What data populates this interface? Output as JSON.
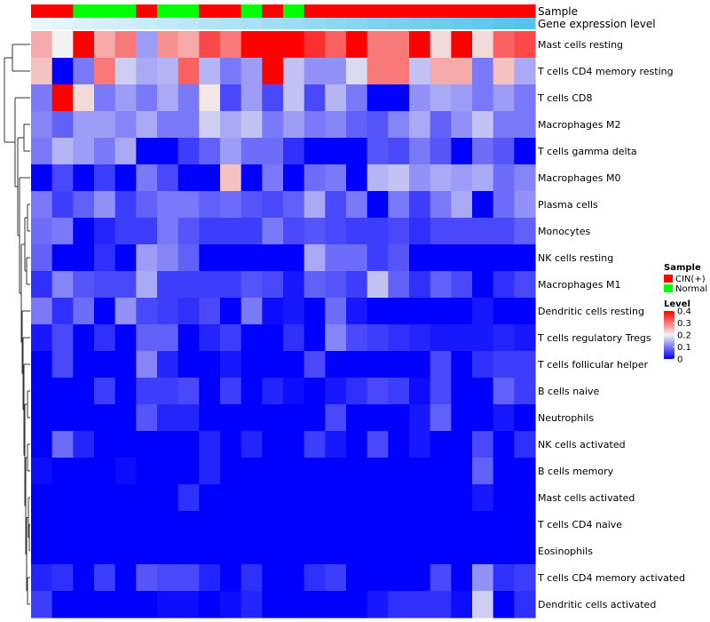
{
  "chart_data": {
    "type": "heatmap",
    "title": "",
    "annotation_tracks": [
      {
        "name": "Sample",
        "values": [
          "CIN(+)",
          "CIN(+)",
          "Normal",
          "Normal",
          "Normal",
          "CIN(+)",
          "Normal",
          "Normal",
          "CIN(+)",
          "CIN(+)",
          "Normal",
          "CIN(+)",
          "Normal",
          "CIN(+)",
          "CIN(+)",
          "CIN(+)",
          "CIN(+)",
          "CIN(+)",
          "CIN(+)",
          "CIN(+)",
          "CIN(+)",
          "CIN(+)",
          "CIN(+)",
          "CIN(+)"
        ]
      },
      {
        "name": "Gene expression level",
        "values": [
          0.0,
          0.04,
          0.09,
          0.13,
          0.17,
          0.22,
          0.26,
          0.3,
          0.35,
          0.39,
          0.43,
          0.48,
          0.52,
          0.57,
          0.61,
          0.65,
          0.7,
          0.74,
          0.78,
          0.83,
          0.87,
          0.91,
          0.96,
          1.0
        ]
      }
    ],
    "rows": [
      "Mast cells resting",
      "T cells CD4 memory resting",
      "T cells CD8",
      "Macrophages M2",
      "T cells gamma delta",
      "Macrophages M0",
      "Plasma cells",
      "Monocytes",
      "NK cells resting",
      "Macrophages M1",
      "Dendritic cells resting",
      "T cells regulatory  Tregs",
      "T cells follicular helper",
      "B cells naive",
      "Neutrophils",
      "NK cells activated",
      "B cells memory",
      "Mast cells activated",
      "T cells CD4 naive",
      "Eosinophils",
      "T cells CD4 memory activated",
      "Dendritic cells activated"
    ],
    "values": [
      [
        0.26,
        0.2,
        0.4,
        0.26,
        0.3,
        0.13,
        0.28,
        0.26,
        0.34,
        0.3,
        0.4,
        0.4,
        0.4,
        0.36,
        0.32,
        0.4,
        0.3,
        0.3,
        0.4,
        0.22,
        0.4,
        0.22,
        0.32,
        0.34
      ],
      [
        0.24,
        0.0,
        0.1,
        0.3,
        0.17,
        0.14,
        0.15,
        0.32,
        0.15,
        0.1,
        0.13,
        0.4,
        0.16,
        0.12,
        0.12,
        0.18,
        0.3,
        0.3,
        0.16,
        0.26,
        0.26,
        0.1,
        0.24,
        0.14
      ],
      [
        0.1,
        0.4,
        0.22,
        0.1,
        0.13,
        0.1,
        0.14,
        0.1,
        0.21,
        0.06,
        0.13,
        0.06,
        0.16,
        0.06,
        0.15,
        0.1,
        0.0,
        0.0,
        0.12,
        0.14,
        0.13,
        0.1,
        0.13,
        0.1
      ],
      [
        0.11,
        0.08,
        0.13,
        0.13,
        0.11,
        0.14,
        0.1,
        0.1,
        0.17,
        0.14,
        0.16,
        0.1,
        0.13,
        0.1,
        0.11,
        0.08,
        0.07,
        0.11,
        0.14,
        0.08,
        0.12,
        0.16,
        0.1,
        0.1
      ],
      [
        0.1,
        0.15,
        0.13,
        0.1,
        0.14,
        0.0,
        0.0,
        0.05,
        0.08,
        0.13,
        0.09,
        0.09,
        0.04,
        0.0,
        0.0,
        0.0,
        0.07,
        0.06,
        0.1,
        0.07,
        0.0,
        0.09,
        0.07,
        0.0
      ],
      [
        0.0,
        0.06,
        0.0,
        0.05,
        0.0,
        0.1,
        0.06,
        0.0,
        0.0,
        0.24,
        0.0,
        0.1,
        0.0,
        0.09,
        0.1,
        0.0,
        0.15,
        0.16,
        0.12,
        0.14,
        0.13,
        0.14,
        0.09,
        0.11
      ],
      [
        0.1,
        0.05,
        0.08,
        0.12,
        0.05,
        0.08,
        0.1,
        0.1,
        0.08,
        0.09,
        0.07,
        0.06,
        0.08,
        0.14,
        0.06,
        0.1,
        0.0,
        0.1,
        0.05,
        0.1,
        0.14,
        0.0,
        0.09,
        0.12
      ],
      [
        0.09,
        0.1,
        0.0,
        0.03,
        0.05,
        0.05,
        0.1,
        0.07,
        0.05,
        0.05,
        0.05,
        0.1,
        0.06,
        0.07,
        0.06,
        0.05,
        0.05,
        0.06,
        0.04,
        0.06,
        0.06,
        0.06,
        0.06,
        0.08
      ],
      [
        0.08,
        0.0,
        0.0,
        0.04,
        0.0,
        0.13,
        0.11,
        0.08,
        0.0,
        0.0,
        0.0,
        0.0,
        0.0,
        0.14,
        0.09,
        0.09,
        0.05,
        0.07,
        0.0,
        0.0,
        0.0,
        0.0,
        0.0,
        0.0
      ],
      [
        0.04,
        0.11,
        0.07,
        0.06,
        0.06,
        0.14,
        0.05,
        0.05,
        0.05,
        0.05,
        0.07,
        0.06,
        0.02,
        0.08,
        0.07,
        0.05,
        0.16,
        0.08,
        0.04,
        0.08,
        0.06,
        0.0,
        0.04,
        0.06
      ],
      [
        0.1,
        0.04,
        0.09,
        0.0,
        0.12,
        0.06,
        0.05,
        0.04,
        0.06,
        0.0,
        0.1,
        0.01,
        0.02,
        0.0,
        0.09,
        0.02,
        0.0,
        0.0,
        0.0,
        0.0,
        0.0,
        0.02,
        0.0,
        0.0
      ],
      [
        0.02,
        0.06,
        0.0,
        0.04,
        0.0,
        0.08,
        0.08,
        0.0,
        0.03,
        0.05,
        0.0,
        0.0,
        0.04,
        0.0,
        0.11,
        0.06,
        0.05,
        0.04,
        0.03,
        0.02,
        0.02,
        0.02,
        0.03,
        0.02
      ],
      [
        0.0,
        0.06,
        0.0,
        0.0,
        0.0,
        0.11,
        0.03,
        0.0,
        0.0,
        0.02,
        0.0,
        0.0,
        0.0,
        0.06,
        0.0,
        0.0,
        0.0,
        0.0,
        0.0,
        0.06,
        0.0,
        0.04,
        0.05,
        0.05
      ],
      [
        0.0,
        0.0,
        0.0,
        0.05,
        0.0,
        0.05,
        0.05,
        0.06,
        0.0,
        0.05,
        0.0,
        0.03,
        0.01,
        0.0,
        0.02,
        0.04,
        0.06,
        0.05,
        0.01,
        0.06,
        0.0,
        0.0,
        0.08,
        0.05
      ],
      [
        0.0,
        0.0,
        0.0,
        0.0,
        0.0,
        0.07,
        0.03,
        0.03,
        0.0,
        0.0,
        0.0,
        0.0,
        0.0,
        0.0,
        0.06,
        0.0,
        0.0,
        0.0,
        0.02,
        0.08,
        0.0,
        0.0,
        0.02,
        0.0
      ],
      [
        0.0,
        0.09,
        0.03,
        0.0,
        0.0,
        0.0,
        0.0,
        0.0,
        0.03,
        0.0,
        0.03,
        0.0,
        0.0,
        0.05,
        0.02,
        0.0,
        0.06,
        0.0,
        0.02,
        0.0,
        0.0,
        0.06,
        0.0,
        0.04
      ],
      [
        0.01,
        0.0,
        0.0,
        0.0,
        0.01,
        0.0,
        0.0,
        0.0,
        0.03,
        0.0,
        0.0,
        0.0,
        0.0,
        0.0,
        0.0,
        0.0,
        0.0,
        0.0,
        0.0,
        0.0,
        0.0,
        0.08,
        0.0,
        0.0
      ],
      [
        0.0,
        0.0,
        0.0,
        0.0,
        0.0,
        0.0,
        0.0,
        0.04,
        0.0,
        0.0,
        0.0,
        0.0,
        0.0,
        0.0,
        0.0,
        0.0,
        0.0,
        0.0,
        0.0,
        0.0,
        0.0,
        0.02,
        0.0,
        0.0
      ],
      [
        0.0,
        0.0,
        0.0,
        0.0,
        0.0,
        0.0,
        0.0,
        0.0,
        0.0,
        0.0,
        0.0,
        0.0,
        0.0,
        0.0,
        0.0,
        0.0,
        0.0,
        0.0,
        0.0,
        0.0,
        0.0,
        0.0,
        0.0,
        0.0
      ],
      [
        0.0,
        0.0,
        0.0,
        0.0,
        0.0,
        0.0,
        0.0,
        0.0,
        0.0,
        0.0,
        0.0,
        0.0,
        0.0,
        0.0,
        0.0,
        0.0,
        0.0,
        0.0,
        0.0,
        0.0,
        0.0,
        0.0,
        0.0,
        0.0
      ],
      [
        0.03,
        0.04,
        0.0,
        0.05,
        0.0,
        0.07,
        0.06,
        0.06,
        0.03,
        0.0,
        0.04,
        0.0,
        0.0,
        0.04,
        0.05,
        0.0,
        0.0,
        0.0,
        0.0,
        0.06,
        0.0,
        0.12,
        0.04,
        0.05
      ],
      [
        0.05,
        0.0,
        0.0,
        0.0,
        0.0,
        0.0,
        0.01,
        0.01,
        0.0,
        0.01,
        0.03,
        0.0,
        0.0,
        0.0,
        0.0,
        0.0,
        0.02,
        0.04,
        0.04,
        0.04,
        0.01,
        0.17,
        0.0,
        0.04
      ]
    ],
    "color_scale": {
      "min": 0,
      "max": 0.4,
      "stops": [
        {
          "value": 0,
          "color": "#0000ff"
        },
        {
          "value": 0.2,
          "color": "#f2f2f2"
        },
        {
          "value": 0.4,
          "color": "#ff0000"
        }
      ]
    },
    "sample_colors": {
      "CIN(+)": "#ff0000",
      "Normal": "#00ff00"
    },
    "expression_colors": {
      "low": "#e8f6fd",
      "high": "#55c3ea"
    },
    "legends": {
      "sample": {
        "title": "Sample",
        "entries": [
          "CIN(+)",
          "Normal"
        ]
      },
      "level": {
        "title": "Level",
        "ticks": [
          0.4,
          0.3,
          0.2,
          0.1,
          0
        ]
      }
    },
    "row_dendrogram": true
  }
}
